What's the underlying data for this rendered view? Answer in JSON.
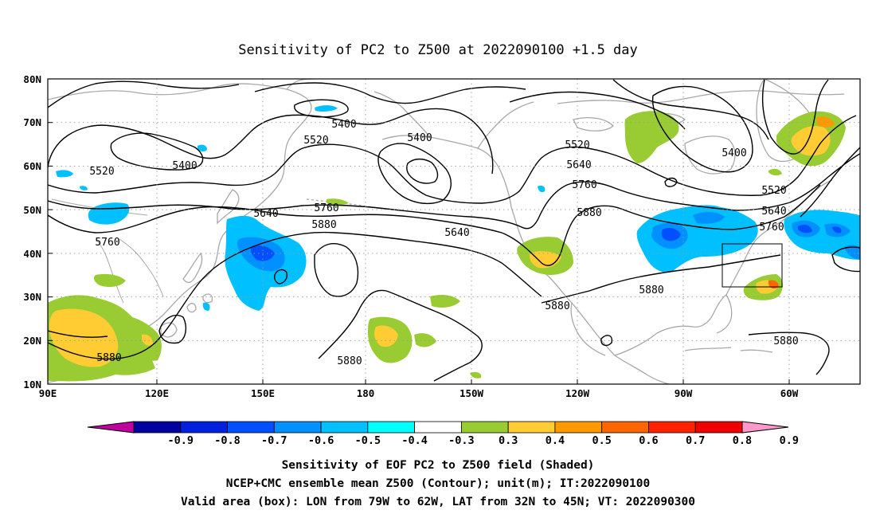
{
  "title": "Sensitivity of PC2 to Z500 at 2022090100 +1.5 day",
  "lat_labels": [
    "80N",
    "70N",
    "60N",
    "50N",
    "40N",
    "30N",
    "20N",
    "10N"
  ],
  "lon_labels": [
    "90E",
    "120E",
    "150E",
    "180",
    "150W",
    "120W",
    "90W",
    "60W"
  ],
  "contour_labels": {
    "c5400": "5400",
    "c5520": "5520",
    "c5640": "5640",
    "c5760": "5760",
    "c5880": "5880"
  },
  "colorbar": {
    "labels": [
      "-0.9",
      "-0.8",
      "-0.7",
      "-0.6",
      "-0.5",
      "-0.4",
      "-0.3",
      "0.3",
      "0.4",
      "0.5",
      "0.6",
      "0.7",
      "0.8",
      "0.9"
    ],
    "colors": [
      "#0000a0",
      "#0020e0",
      "#0050ff",
      "#0090ff",
      "#00c0ff",
      "#00ffff",
      "#ffffff",
      "#99cc33",
      "#ffcc33",
      "#ff9900",
      "#ff6600",
      "#ff2200",
      "#ee0000"
    ],
    "low_end_color": "#c000a0",
    "high_end_color": "#ff99cc"
  },
  "caption": {
    "line1": "Sensitivity of EOF PC2 to Z500 field (Shaded)",
    "line2": "NCEP+CMC ensemble mean Z500 (Contour); unit(m); IT:2022090100",
    "line3": "Valid area (box): LON from 79W to 62W, LAT from 32N to 45N; VT: 2022090300"
  }
}
